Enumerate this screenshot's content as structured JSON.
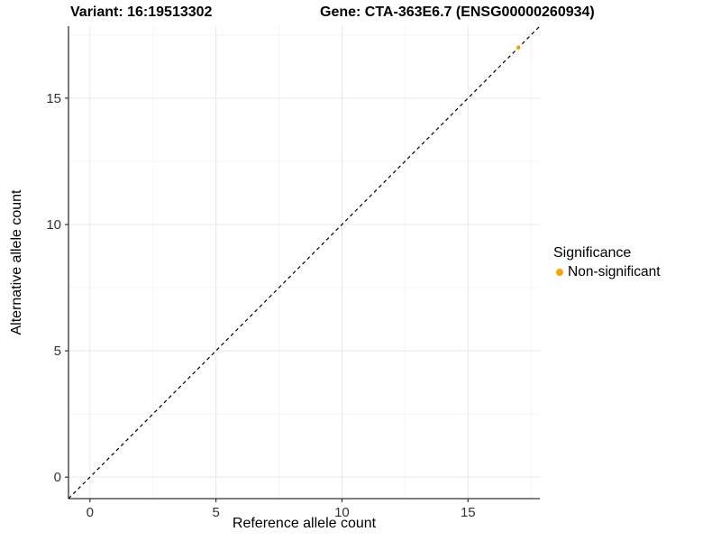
{
  "chart_data": {
    "type": "scatter",
    "title_left": "Variant: 16:19513302",
    "title_right": "Gene: CTA-363E6.7 (ENSG00000260934)",
    "xlabel": "Reference allele count",
    "ylabel": "Alternative allele count",
    "xlim": [
      -0.85,
      17.85
    ],
    "ylim": [
      -0.85,
      17.85
    ],
    "x_ticks": [
      0,
      5,
      10,
      15
    ],
    "y_ticks": [
      0,
      5,
      10,
      15
    ],
    "x_minor_ticks": [
      2.5,
      7.5,
      12.5,
      17.5
    ],
    "y_minor_ticks": [
      2.5,
      7.5,
      12.5,
      17.5
    ],
    "grid": "major+minor",
    "identity_line": {
      "slope": 1,
      "intercept": 0,
      "style": "dashed",
      "color": "#000000"
    },
    "series": [
      {
        "name": "Non-significant",
        "color": "#FFA500",
        "points": [
          [
            17,
            17
          ]
        ]
      }
    ],
    "legend": {
      "title": "Significance",
      "position": "right",
      "items": [
        {
          "label": "Non-significant",
          "color": "#FFA500"
        }
      ]
    }
  },
  "style": {
    "background": "#ffffff",
    "grid_major_color": "#e8e8e8",
    "grid_minor_color": "#f4f4f4",
    "axis_line_color": "#333333",
    "tick_label_color": "#333333",
    "tick_label_size": 15
  }
}
